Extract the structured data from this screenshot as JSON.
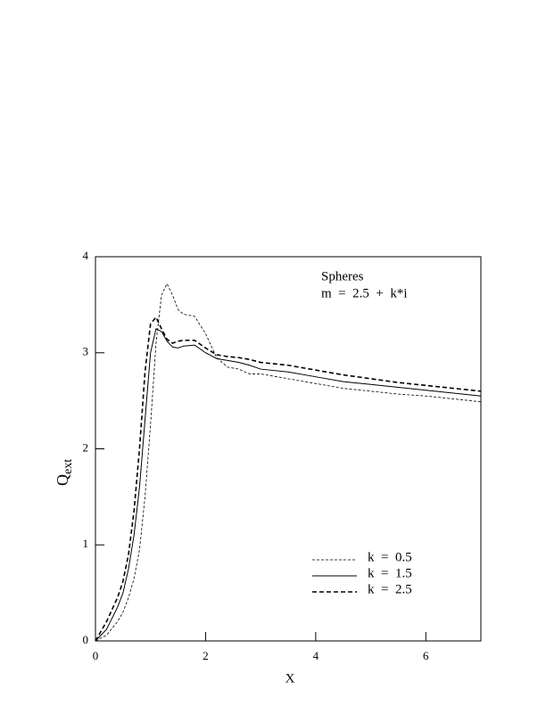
{
  "chart_data": {
    "type": "line",
    "annotations": [
      "Spheres",
      "m  =  2.5  +  k*i"
    ],
    "xlabel": "X",
    "ylabel": "Q",
    "ylabel_sub": "ext",
    "x": [
      0,
      0.2,
      0.4,
      0.5,
      0.6,
      0.7,
      0.8,
      0.9,
      1.0,
      1.1,
      1.2,
      1.3,
      1.4,
      1.5,
      1.6,
      1.8,
      2.0,
      2.2,
      2.4,
      2.6,
      2.8,
      3.0,
      3.5,
      4,
      4.5,
      5,
      5.5,
      6,
      6.5,
      7
    ],
    "series": [
      {
        "name": "k  =  0.5",
        "color": "#000000",
        "dash": "3,2",
        "width": 0.8,
        "values": [
          0,
          0.06,
          0.2,
          0.3,
          0.45,
          0.65,
          0.95,
          1.5,
          2.25,
          3.1,
          3.6,
          3.72,
          3.6,
          3.45,
          3.4,
          3.38,
          3.2,
          2.95,
          2.85,
          2.83,
          2.78,
          2.78,
          2.73,
          2.68,
          2.63,
          2.6,
          2.57,
          2.55,
          2.52,
          2.49
        ]
      },
      {
        "name": "k  =  1.5",
        "color": "#000000",
        "dash": "none",
        "width": 1,
        "values": [
          0,
          0.12,
          0.35,
          0.5,
          0.75,
          1.1,
          1.6,
          2.3,
          3.0,
          3.25,
          3.22,
          3.12,
          3.06,
          3.05,
          3.07,
          3.08,
          3.0,
          2.94,
          2.92,
          2.9,
          2.87,
          2.83,
          2.8,
          2.75,
          2.7,
          2.67,
          2.64,
          2.61,
          2.58,
          2.55
        ]
      },
      {
        "name": "k  =  2.5",
        "color": "#000000",
        "dash": "5,3",
        "width": 1.6,
        "values": [
          0,
          0.2,
          0.45,
          0.62,
          0.9,
          1.35,
          2.0,
          2.8,
          3.3,
          3.37,
          3.25,
          3.14,
          3.1,
          3.12,
          3.13,
          3.13,
          3.05,
          2.98,
          2.96,
          2.95,
          2.93,
          2.9,
          2.87,
          2.82,
          2.77,
          2.73,
          2.69,
          2.66,
          2.63,
          2.6
        ]
      }
    ],
    "xlim": [
      0,
      7
    ],
    "xticks": [
      0,
      2,
      4,
      6
    ],
    "ylim": [
      0,
      4
    ],
    "yticks": [
      0,
      1,
      2,
      3,
      4
    ]
  }
}
